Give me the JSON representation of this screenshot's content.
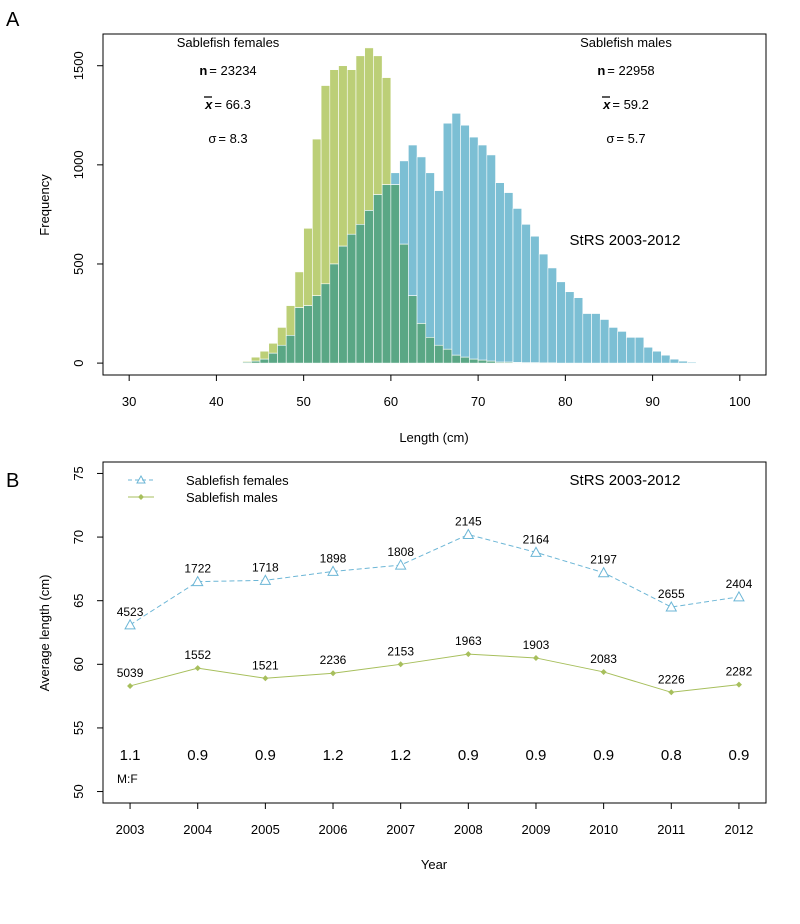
{
  "panel_a": {
    "letter": "A",
    "females": {
      "label": "Sablefish females",
      "n_symbol": "n",
      "n_value": "= 23234",
      "mean_symbol": "x",
      "mean_value": "= 66.3",
      "sd_symbol": "σ",
      "sd_value": "= 8.3"
    },
    "males": {
      "label": "Sablefish males",
      "n_symbol": "n",
      "n_value": "= 22958",
      "mean_symbol": "x",
      "mean_value": "= 59.2",
      "sd_symbol": "σ",
      "sd_value": "= 5.7"
    },
    "survey_label": "StRS 2003-2012",
    "colors": {
      "green": "#bccf77",
      "blue": "#7cbfd4",
      "overlap": "#5aa785"
    }
  },
  "panel_b": {
    "letter": "B",
    "survey_label": "StRS 2003-2012",
    "ratio_label": "M:F",
    "colors": {
      "females": "#6cb6d6",
      "males": "#a7bf5c"
    }
  },
  "chart_data": [
    {
      "type": "bar",
      "xlabel": "Length (cm)",
      "ylabel": "Frequency",
      "xlim": [
        27,
        103
      ],
      "ylim": [
        -60,
        1660
      ],
      "xticks": [
        30,
        40,
        50,
        60,
        70,
        80,
        90,
        100
      ],
      "yticks": [
        0,
        500,
        1000,
        1500
      ],
      "bin_start": 43,
      "bin_width": 1,
      "series": [
        {
          "name": "Sablefish males",
          "values": [
            10,
            30,
            60,
            100,
            180,
            290,
            460,
            680,
            1130,
            1400,
            1480,
            1500,
            1480,
            1550,
            1590,
            1550,
            1440,
            900,
            600,
            340,
            200,
            130,
            90,
            70,
            40,
            30,
            20,
            15,
            10,
            5,
            5,
            3,
            2,
            2,
            1,
            1,
            0,
            0,
            0,
            0,
            0,
            0,
            0,
            0,
            0,
            0,
            0,
            0,
            0,
            0,
            0,
            0
          ]
        },
        {
          "name": "Sablefish females",
          "values": [
            5,
            10,
            20,
            50,
            90,
            140,
            280,
            290,
            340,
            400,
            500,
            590,
            650,
            700,
            770,
            850,
            900,
            960,
            1020,
            1100,
            1040,
            960,
            870,
            1210,
            1260,
            1200,
            1140,
            1100,
            1050,
            910,
            860,
            780,
            700,
            640,
            550,
            480,
            410,
            360,
            330,
            250,
            250,
            220,
            180,
            160,
            130,
            130,
            80,
            60,
            40,
            20,
            10,
            5
          ]
        }
      ]
    },
    {
      "type": "line",
      "xlabel": "Year",
      "ylabel": "Average length (cm)",
      "xlim": [
        2002.6,
        2012.4
      ],
      "ylim": [
        49.1,
        75.9
      ],
      "yticks": [
        50,
        55,
        60,
        65,
        70,
        75
      ],
      "categories": [
        "2003",
        "2004",
        "2005",
        "2006",
        "2007",
        "2008",
        "2009",
        "2010",
        "2011",
        "2012"
      ],
      "series": [
        {
          "name": "Sablefish females",
          "values": [
            63.1,
            66.5,
            66.6,
            67.3,
            67.8,
            70.2,
            68.8,
            67.2,
            64.5,
            65.3
          ],
          "labels": [
            "4523",
            "1722",
            "1718",
            "1898",
            "1808",
            "2145",
            "2164",
            "2197",
            "2655",
            "2404"
          ]
        },
        {
          "name": "Sablefish males",
          "values": [
            58.3,
            59.7,
            58.9,
            59.3,
            60.0,
            60.8,
            60.5,
            59.4,
            57.8,
            58.4
          ],
          "labels": [
            "5039",
            "1552",
            "1521",
            "2236",
            "2153",
            "1963",
            "1903",
            "2083",
            "2226",
            "2282"
          ]
        }
      ],
      "ratios": [
        "1.1",
        "0.9",
        "0.9",
        "1.2",
        "1.2",
        "0.9",
        "0.9",
        "0.9",
        "0.8",
        "0.9"
      ]
    }
  ]
}
